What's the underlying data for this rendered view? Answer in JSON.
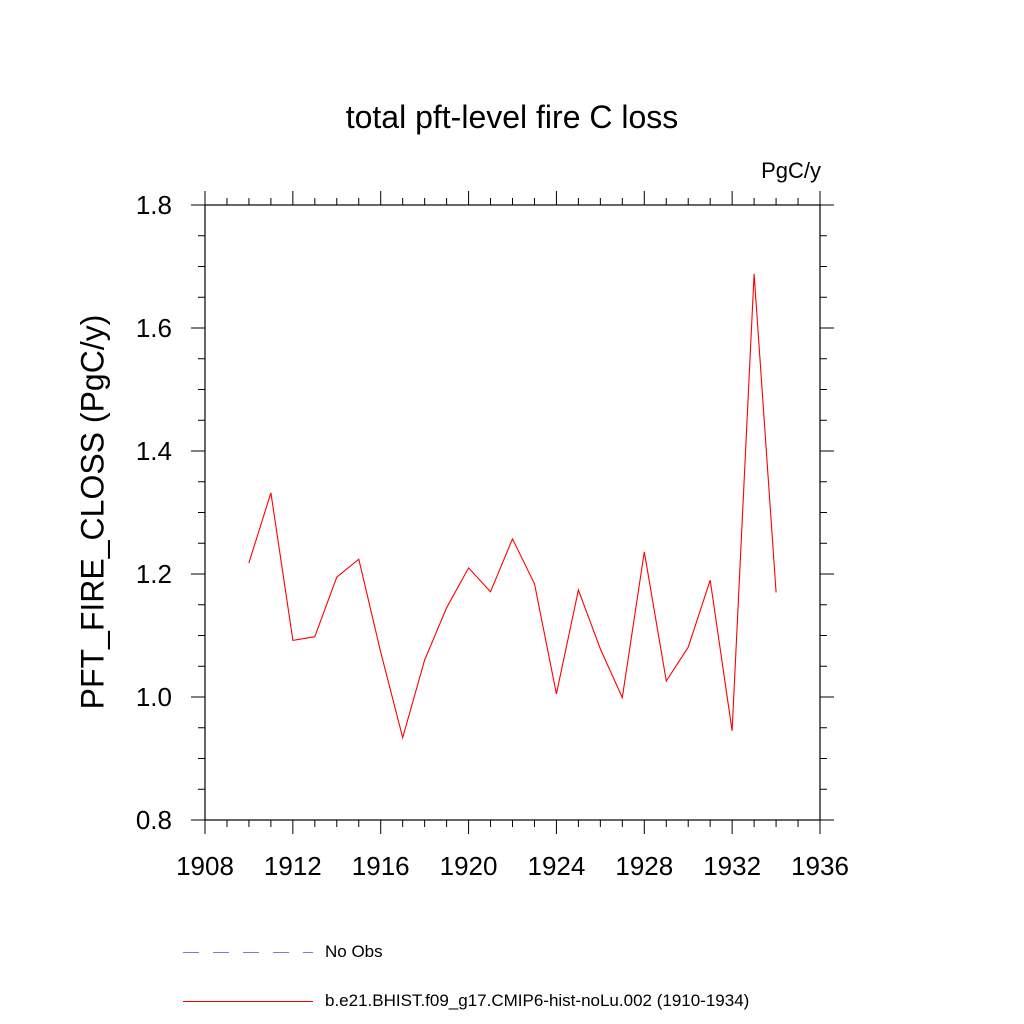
{
  "chart_data": {
    "type": "line",
    "title": "total pft-level fire C loss",
    "units_label": "PgC/y",
    "ylabel": "PFT_FIRE_CLOSS  (PgC/y)",
    "xlabel": "",
    "xlim": [
      1908,
      1936
    ],
    "ylim": [
      0.8,
      1.8
    ],
    "x_ticks": [
      "1908",
      "1912",
      "1916",
      "1920",
      "1924",
      "1928",
      "1932",
      "1936"
    ],
    "y_ticks": [
      "0.8",
      "1.0",
      "1.2",
      "1.4",
      "1.6",
      "1.8"
    ],
    "grid": false,
    "legend_placement": "bottom",
    "series": [
      {
        "name": "b.e21.BHIST.f09_g17.CMIP6-hist-noLu.002 (1910-1934)",
        "color": "#ff0000",
        "style": "solid",
        "x": [
          1910,
          1911,
          1912,
          1913,
          1914,
          1915,
          1916,
          1917,
          1918,
          1919,
          1920,
          1921,
          1922,
          1923,
          1924,
          1925,
          1926,
          1927,
          1928,
          1929,
          1930,
          1931,
          1932,
          1933,
          1934
        ],
        "y": [
          1.218,
          1.332,
          1.092,
          1.098,
          1.195,
          1.224,
          1.073,
          0.934,
          1.06,
          1.145,
          1.21,
          1.171,
          1.257,
          1.184,
          1.005,
          1.174,
          1.078,
          0.999,
          1.236,
          1.026,
          1.081,
          1.19,
          0.945,
          1.688,
          1.17
        ]
      }
    ],
    "legend": [
      {
        "label": "No Obs",
        "color": "#7a7adb",
        "style": "dashed"
      },
      {
        "label": "b.e21.BHIST.f09_g17.CMIP6-hist-noLu.002 (1910-1934)",
        "color": "#ff0000",
        "style": "solid"
      }
    ]
  }
}
